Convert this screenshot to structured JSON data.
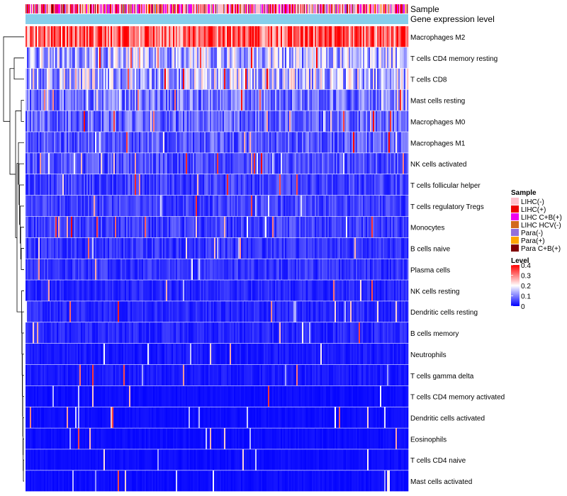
{
  "chart_data": {
    "type": "heatmap",
    "title": "",
    "annotation_tracks": [
      "Sample",
      "Gene expression level"
    ],
    "rows": [
      "Macrophages M2",
      "T cells CD4 memory resting",
      "T cells CD8",
      "Mast cells resting",
      "Macrophages M0",
      "Macrophages M1",
      "NK cells activated",
      "T cells follicular helper",
      "T cells regulatory  Tregs",
      "Monocytes",
      "B cells naive",
      "Plasma cells",
      "NK cells resting",
      "Dendritic cells resting",
      "B cells memory",
      "Neutrophils",
      "T cells gamma delta",
      "T cells CD4 memory activated",
      "Dendritic cells activated",
      "Eosinophils",
      "T cells CD4 naive",
      "Mast cells activated"
    ],
    "row_mean_level": [
      0.33,
      0.14,
      0.15,
      0.09,
      0.08,
      0.07,
      0.06,
      0.05,
      0.05,
      0.05,
      0.04,
      0.04,
      0.03,
      0.03,
      0.03,
      0.02,
      0.02,
      0.01,
      0.01,
      0.01,
      0.01,
      0.01
    ],
    "sample_count": 540,
    "sample_legend": {
      "title": "Sample",
      "entries": [
        {
          "label": "LIHC(-)",
          "color": "#ffc0cb"
        },
        {
          "label": "LIHC(+)",
          "color": "#ee0000"
        },
        {
          "label": "LIHC C+B(+)",
          "color": "#ee00ee"
        },
        {
          "label": "LIHC HCV(-)",
          "color": "#d2691e"
        },
        {
          "label": "Para(-)",
          "color": "#9370db"
        },
        {
          "label": "Para(+)",
          "color": "#ffa500"
        },
        {
          "label": "Para C+B(+)",
          "color": "#800000"
        }
      ]
    },
    "sample_mix": [
      0.42,
      0.2,
      0.22,
      0.04,
      0.06,
      0.03,
      0.03
    ],
    "level_legend": {
      "title": "Level",
      "ticks": [
        0.4,
        0.3,
        0.2,
        0.1,
        0
      ],
      "color_low": "#0000ff",
      "color_mid": "#ffffff",
      "color_high": "#ff0000",
      "range": [
        0,
        0.4
      ]
    },
    "gene_expression_color": "#87ceeb"
  }
}
